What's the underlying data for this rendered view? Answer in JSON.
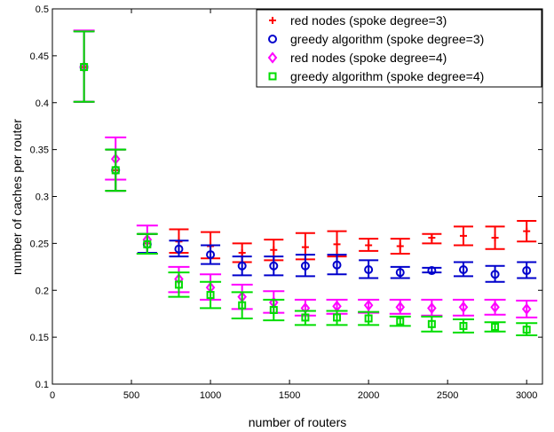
{
  "chart_data": {
    "type": "scatter",
    "title": "",
    "xlabel": "number of routers",
    "ylabel": "number of caches per router",
    "xlim": [
      0,
      3100
    ],
    "ylim": [
      0.1,
      0.5
    ],
    "xticks": [
      0,
      500,
      1000,
      1500,
      2000,
      2500,
      3000
    ],
    "yticks": [
      0.1,
      0.15,
      0.2,
      0.25,
      0.3,
      0.35,
      0.4,
      0.45,
      0.5
    ],
    "xtick_labels": [
      "0",
      "500",
      "1000",
      "1500",
      "2000",
      "2500",
      "3000"
    ],
    "ytick_labels": [
      "0.1",
      "0.15",
      "0.2",
      "0.25",
      "0.3",
      "0.35",
      "0.4",
      "0.45",
      "0.5"
    ],
    "grid": false,
    "legend_position": "top-right",
    "x": [
      200,
      400,
      600,
      800,
      1000,
      1200,
      1400,
      1600,
      1800,
      2000,
      2200,
      2400,
      2600,
      2800,
      3000
    ],
    "series": [
      {
        "name": "red nodes (spoke degree=3)",
        "marker": "plus",
        "color": "#ff0000",
        "values": [
          0.438,
          0.328,
          0.25,
          0.252,
          0.247,
          0.24,
          0.243,
          0.246,
          0.249,
          0.248,
          0.247,
          0.256,
          0.258,
          0.256,
          0.263
        ],
        "err_low": [
          0.401,
          0.306,
          0.24,
          0.24,
          0.234,
          0.23,
          0.232,
          0.233,
          0.236,
          0.242,
          0.239,
          0.25,
          0.248,
          0.244,
          0.252
        ],
        "err_high": [
          0.476,
          0.35,
          0.26,
          0.265,
          0.262,
          0.25,
          0.254,
          0.261,
          0.263,
          0.255,
          0.255,
          0.26,
          0.268,
          0.268,
          0.274
        ]
      },
      {
        "name": "greedy algorithm (spoke degree=3)",
        "marker": "circle",
        "color": "#0000cc",
        "values": [
          0.438,
          0.328,
          0.249,
          0.244,
          0.238,
          0.226,
          0.226,
          0.226,
          0.227,
          0.222,
          0.219,
          0.221,
          0.222,
          0.217,
          0.221
        ],
        "err_low": [
          0.401,
          0.306,
          0.24,
          0.236,
          0.228,
          0.216,
          0.216,
          0.215,
          0.217,
          0.213,
          0.213,
          0.219,
          0.215,
          0.209,
          0.213
        ],
        "err_high": [
          0.476,
          0.35,
          0.26,
          0.253,
          0.248,
          0.236,
          0.236,
          0.238,
          0.238,
          0.232,
          0.225,
          0.224,
          0.23,
          0.226,
          0.23
        ]
      },
      {
        "name": "red nodes (spoke degree=4)",
        "marker": "diamond",
        "color": "#ff00ff",
        "values": [
          0.438,
          0.34,
          0.254,
          0.212,
          0.203,
          0.193,
          0.187,
          0.181,
          0.183,
          0.184,
          0.182,
          0.181,
          0.182,
          0.182,
          0.18
        ],
        "err_low": [
          0.401,
          0.318,
          0.239,
          0.198,
          0.19,
          0.18,
          0.176,
          0.173,
          0.175,
          0.176,
          0.175,
          0.173,
          0.173,
          0.174,
          0.171
        ],
        "err_high": [
          0.477,
          0.363,
          0.269,
          0.225,
          0.217,
          0.206,
          0.199,
          0.19,
          0.19,
          0.19,
          0.19,
          0.19,
          0.19,
          0.19,
          0.189
        ]
      },
      {
        "name": "greedy algorithm (spoke degree=4)",
        "marker": "square",
        "color": "#00dd00",
        "values": [
          0.438,
          0.328,
          0.249,
          0.206,
          0.195,
          0.184,
          0.179,
          0.171,
          0.171,
          0.17,
          0.167,
          0.164,
          0.162,
          0.161,
          0.158
        ],
        "err_low": [
          0.401,
          0.306,
          0.239,
          0.193,
          0.181,
          0.17,
          0.168,
          0.163,
          0.163,
          0.163,
          0.162,
          0.156,
          0.155,
          0.156,
          0.152
        ],
        "err_high": [
          0.476,
          0.35,
          0.26,
          0.219,
          0.209,
          0.198,
          0.19,
          0.178,
          0.178,
          0.177,
          0.172,
          0.172,
          0.169,
          0.166,
          0.165
        ]
      }
    ]
  }
}
